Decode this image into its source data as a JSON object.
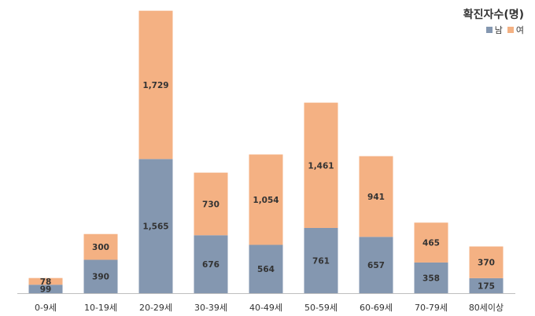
{
  "legend": {
    "title": "확진자수(명)",
    "male_label": "남",
    "female_label": "여"
  },
  "colors": {
    "male": "#8497b0",
    "female": "#f4b183",
    "axis": "#bfbfbf",
    "text": "#333333"
  },
  "chart_data": {
    "type": "bar",
    "stacked": true,
    "categories": [
      "0-9세",
      "10-19세",
      "20-29세",
      "30-39세",
      "40-49세",
      "50-59세",
      "60-69세",
      "70-79세",
      "80세이상"
    ],
    "series": [
      {
        "name": "남",
        "values": [
          99,
          390,
          1565,
          676,
          564,
          761,
          657,
          358,
          175
        ]
      },
      {
        "name": "여",
        "values": [
          78,
          300,
          1729,
          730,
          1054,
          1461,
          941,
          465,
          370
        ]
      }
    ],
    "data_labels": [
      {
        "male": "99",
        "female": "78"
      },
      {
        "male": "390",
        "female": "300"
      },
      {
        "male": "1,565",
        "female": "1,729"
      },
      {
        "male": "676",
        "female": "730"
      },
      {
        "male": "564",
        "female": "1,054"
      },
      {
        "male": "761",
        "female": "1,461"
      },
      {
        "male": "657",
        "female": "941"
      },
      {
        "male": "358",
        "female": "465"
      },
      {
        "male": "175",
        "female": "370"
      }
    ],
    "grid": false,
    "legend_position": "top-right",
    "ylim": [
      0,
      3300
    ]
  }
}
